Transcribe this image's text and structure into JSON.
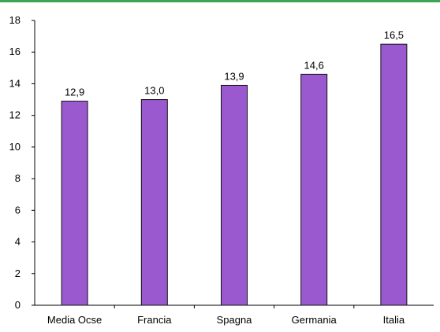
{
  "colors": {
    "bar": "#9b59d0",
    "bar_stroke": "#111111",
    "axis": "#000000",
    "top_rule": "#3aa655"
  },
  "chart_data": {
    "type": "bar",
    "title": "",
    "xlabel": "",
    "ylabel": "",
    "categories": [
      "Media Ocse",
      "Francia",
      "Spagna",
      "Germania",
      "Italia"
    ],
    "values": [
      12.9,
      13.0,
      13.9,
      14.6,
      16.5
    ],
    "value_labels": [
      "12,9",
      "13,0",
      "13,9",
      "14,6",
      "16,5"
    ],
    "ylim": [
      0,
      18
    ],
    "yticks": [
      0,
      2,
      4,
      6,
      8,
      10,
      12,
      14,
      16,
      18
    ],
    "grid": false,
    "legend": "none"
  }
}
